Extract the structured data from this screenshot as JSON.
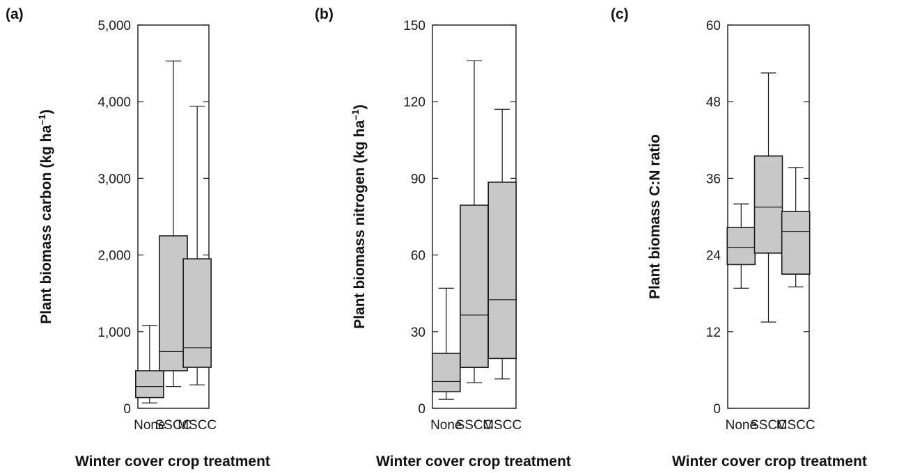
{
  "chart_data": [
    {
      "type": "box",
      "panel_label": "(a)",
      "ylabel": "Plant biomass carbon (kg ha",
      "ylabel_sup": "–1",
      "ylabel_close": ")",
      "xlabel": "Winter cover crop treatment",
      "ylim": [
        0,
        5000
      ],
      "yticks": [
        0,
        1000,
        2000,
        3000,
        4000,
        5000
      ],
      "ytick_labels": [
        "0",
        "1,000",
        "2,000",
        "3,000",
        "4,000",
        "5,000"
      ],
      "categories": [
        "None",
        "SSCC",
        "MSCC"
      ],
      "boxes": [
        {
          "min": 70,
          "q1": 140,
          "median": 285,
          "q3": 490,
          "max": 1080
        },
        {
          "min": 285,
          "q1": 490,
          "median": 740,
          "q3": 2250,
          "max": 4530
        },
        {
          "min": 305,
          "q1": 535,
          "median": 790,
          "q3": 1950,
          "max": 3940
        }
      ]
    },
    {
      "type": "box",
      "panel_label": "(b)",
      "ylabel": "Plant biomass nitrogen (kg ha",
      "ylabel_sup": "–1",
      "ylabel_close": ")",
      "xlabel": "Winter cover crop treatment",
      "ylim": [
        0,
        150
      ],
      "yticks": [
        0,
        30,
        60,
        90,
        120,
        150
      ],
      "ytick_labels": [
        "0",
        "30",
        "60",
        "90",
        "120",
        "150"
      ],
      "categories": [
        "None",
        "SSCC",
        "MSCC"
      ],
      "boxes": [
        {
          "min": 3.5,
          "q1": 6.5,
          "median": 10.5,
          "q3": 21.5,
          "max": 47
        },
        {
          "min": 10,
          "q1": 16,
          "median": 36.5,
          "q3": 79.5,
          "max": 136
        },
        {
          "min": 11.5,
          "q1": 19.5,
          "median": 42.5,
          "q3": 88.5,
          "max": 117
        }
      ]
    },
    {
      "type": "box",
      "panel_label": "(c)",
      "ylabel": "Plant biomass C:N ratio",
      "ylabel_sup": "",
      "ylabel_close": "",
      "xlabel": "Winter cover crop treatment",
      "ylim": [
        0,
        60
      ],
      "yticks": [
        0,
        12,
        24,
        36,
        48,
        60
      ],
      "ytick_labels": [
        "0",
        "12",
        "24",
        "36",
        "48",
        "60"
      ],
      "categories": [
        "None",
        "SSCC",
        "MSCC"
      ],
      "boxes": [
        {
          "min": 18.8,
          "q1": 22.5,
          "median": 25.2,
          "q3": 28.3,
          "max": 32
        },
        {
          "min": 13.5,
          "q1": 24.3,
          "median": 31.5,
          "q3": 39.5,
          "max": 52.5
        },
        {
          "min": 19,
          "q1": 21,
          "median": 27.7,
          "q3": 30.8,
          "max": 37.7
        }
      ]
    }
  ]
}
